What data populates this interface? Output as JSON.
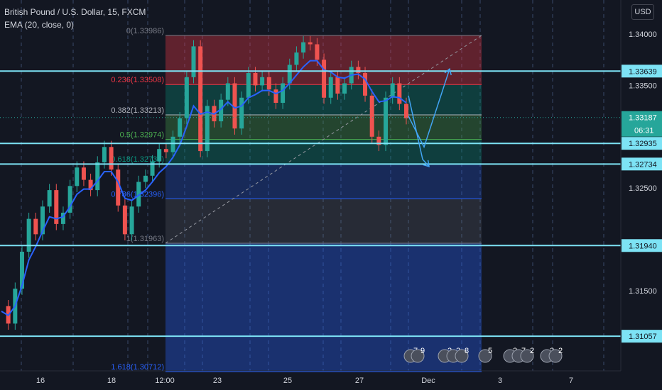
{
  "legend": {
    "title": "British Pound / U.S. Dollar, 15, FXCM",
    "indicator": "EMA (20, close, 0)"
  },
  "currency_button": "USD",
  "chart_data": {
    "type": "line",
    "x_ticks": [
      "16",
      "18",
      "12:00",
      "23",
      "25",
      "27",
      "Dec",
      "3",
      "7"
    ],
    "y_ticks": [
      "1.34000",
      "1.33500",
      "1.32500",
      "1.31500"
    ],
    "ylim": [
      1.305,
      1.342
    ],
    "price_series": [
      1.3135,
      1.3118,
      1.3152,
      1.3188,
      1.322,
      1.3205,
      1.3232,
      1.3248,
      1.3215,
      1.3226,
      1.3252,
      1.327,
      1.3258,
      1.3248,
      1.3275,
      1.329,
      1.3268,
      1.3233,
      1.3205,
      1.3232,
      1.3256,
      1.3262,
      1.3276,
      1.3288,
      1.3285,
      1.33,
      1.3318,
      1.3358,
      1.3388,
      1.3286,
      1.333,
      1.3315,
      1.3336,
      1.3352,
      1.3308,
      1.3338,
      1.3362,
      1.335,
      1.3358,
      1.3346,
      1.3333,
      1.3352,
      1.337,
      1.3382,
      1.3392,
      1.339,
      1.3375,
      1.3338,
      1.3358,
      1.3342,
      1.3352,
      1.3368,
      1.3362,
      1.334,
      1.33,
      1.3292,
      1.3338,
      1.3352,
      1.3332,
      1.3318
    ],
    "ema_series": [
      1.313,
      1.3126,
      1.3135,
      1.3155,
      1.318,
      1.3193,
      1.3208,
      1.3222,
      1.322,
      1.3222,
      1.3232,
      1.3244,
      1.3249,
      1.3249,
      1.3257,
      1.3266,
      1.3266,
      1.3256,
      1.324,
      1.3238,
      1.3243,
      1.3248,
      1.3256,
      1.3265,
      1.3271,
      1.328,
      1.3292,
      1.331,
      1.333,
      1.3322,
      1.3324,
      1.3322,
      1.3327,
      1.3334,
      1.3328,
      1.333,
      1.3338,
      1.3341,
      1.3345,
      1.3345,
      1.3342,
      1.3345,
      1.3352,
      1.336,
      1.3368,
      1.3374,
      1.3374,
      1.3365,
      1.3363,
      1.3358,
      1.3357,
      1.336,
      1.3361,
      1.3356,
      1.3344,
      1.3334,
      1.3335,
      1.3339,
      1.3338,
      1.3333
    ],
    "fib_levels": [
      {
        "text": "0(1.33986)",
        "color": "#787b86"
      },
      {
        "text": "0.236(1.33508)",
        "color": "#f23645"
      },
      {
        "text": "0.382(1.33213)",
        "color": "#b2b5be"
      },
      {
        "text": "0.5(1.32974)",
        "color": "#4caf50"
      },
      {
        "text": "0.618(1.32735)",
        "color": "#089981"
      },
      {
        "text": "0.786(1.32396)",
        "color": "#2962ff"
      },
      {
        "text": "1(1.31963)",
        "color": "#787b86"
      },
      {
        "text": "1.618(1.30712)",
        "color": "#2962ff"
      }
    ],
    "fib_values": [
      1.33986,
      1.33508,
      1.33213,
      1.32974,
      1.32735,
      1.32396,
      1.31963,
      1.30712
    ],
    "horizontal_levels": [
      {
        "value": 1.33639,
        "label": "1.33639"
      },
      {
        "value": 1.32935,
        "label": "1.32935"
      },
      {
        "value": 1.32734,
        "label": "1.32734"
      },
      {
        "value": 1.3194,
        "label": "1.31940"
      },
      {
        "value": 1.31057,
        "label": "1.31057"
      }
    ],
    "current_price": {
      "value": 1.33187,
      "label": "1.33187",
      "countdown": "06:31"
    },
    "projection_up": [
      1.332,
      1.329,
      1.3366
    ],
    "projection_down": [
      1.334,
      1.3278,
      1.3271
    ],
    "events": [
      "7",
      "9",
      "2",
      "2",
      "8",
      "5",
      "2",
      "7",
      "2",
      "2",
      "2"
    ],
    "colors": {
      "up": "#26a69a",
      "down": "#ef5350",
      "ema": "#2962ff",
      "level": "#7de3f5",
      "projection": "#42a5f5"
    }
  }
}
